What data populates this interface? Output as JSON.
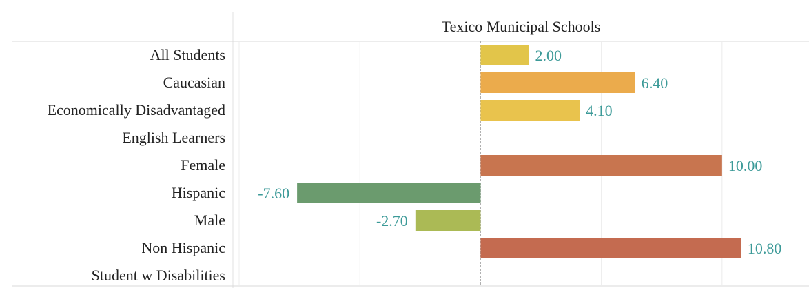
{
  "chart_data": {
    "type": "bar",
    "orientation": "horizontal",
    "title": "Texico Municipal Schools",
    "categories": [
      "All Students",
      "Caucasian",
      "Economically Disadvantaged",
      "English Learners",
      "Female",
      "Hispanic",
      "Male",
      "Non Hispanic",
      "Student w Disabilities"
    ],
    "values": [
      2.0,
      6.4,
      4.1,
      null,
      10.0,
      -7.6,
      -2.7,
      10.8,
      null
    ],
    "value_labels": [
      "2.00",
      "6.40",
      "4.10",
      "",
      "10.00",
      "-7.60",
      "-2.70",
      "10.80",
      ""
    ],
    "colors": [
      "#e2c54a",
      "#ebab4c",
      "#e9c34d",
      "#cccccc",
      "#c8754f",
      "#6b9b6e",
      "#abba55",
      "#c46b50",
      "#cccccc"
    ],
    "label_color": "#3c9a98",
    "xlim": [
      -10.2,
      13.6
    ],
    "gridlines_x": [
      -10,
      -5,
      0,
      5,
      10
    ],
    "zero_line": true,
    "grid": true
  }
}
